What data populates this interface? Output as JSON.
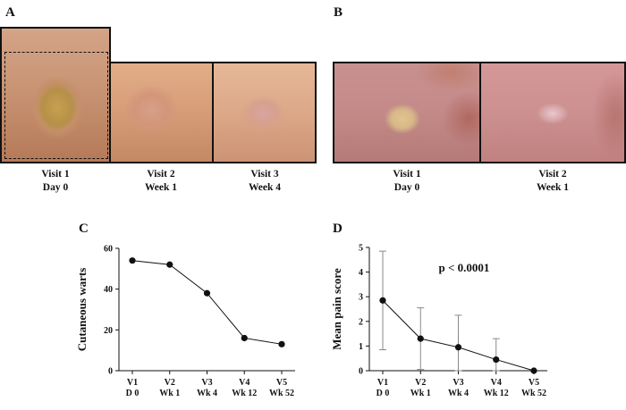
{
  "panels": {
    "A": {
      "letter": "A",
      "captions": [
        {
          "line1": "Visit 1",
          "line2": "Day 0"
        },
        {
          "line1": "Visit 2",
          "line2": "Week 1"
        },
        {
          "line1": "Visit 3",
          "line2": "Week 4"
        }
      ]
    },
    "B": {
      "letter": "B",
      "captions": [
        {
          "line1": "Visit 1",
          "line2": "Day 0"
        },
        {
          "line1": "Visit 2",
          "line2": "Week 1"
        }
      ]
    },
    "C": {
      "letter": "C"
    },
    "D": {
      "letter": "D",
      "annotation": "p < 0.0001"
    }
  },
  "chart_data": [
    {
      "type": "line",
      "panel": "C",
      "ylabel": "Cutaneous warts",
      "xlabel": "",
      "categories": [
        "V1",
        "V2",
        "V3",
        "V4",
        "V5"
      ],
      "categories_line2": [
        "D 0",
        "Wk 1",
        "Wk 4",
        "Wk 12",
        "Wk 52"
      ],
      "values": [
        54,
        52,
        38,
        16,
        13
      ],
      "ylim": [
        0,
        60
      ],
      "yticks": [
        0,
        20,
        40,
        60
      ],
      "grid": false,
      "markers": true
    },
    {
      "type": "line",
      "panel": "D",
      "ylabel": "Mean pain score",
      "xlabel": "",
      "categories": [
        "V1",
        "V2",
        "V3",
        "V4",
        "V5"
      ],
      "categories_line2": [
        "D 0",
        "Wk 1",
        "Wk 4",
        "Wk 12",
        "Wk 52"
      ],
      "values": [
        2.85,
        1.3,
        0.95,
        0.45,
        0.0
      ],
      "error_low": [
        0.85,
        0.05,
        0.0,
        0.0,
        0.0
      ],
      "error_high": [
        4.85,
        2.55,
        2.25,
        1.3,
        0.0
      ],
      "ylim": [
        0,
        5
      ],
      "yticks": [
        0,
        1,
        2,
        3,
        4,
        5
      ],
      "annotation": "p < 0.0001",
      "grid": false,
      "markers": true
    }
  ]
}
